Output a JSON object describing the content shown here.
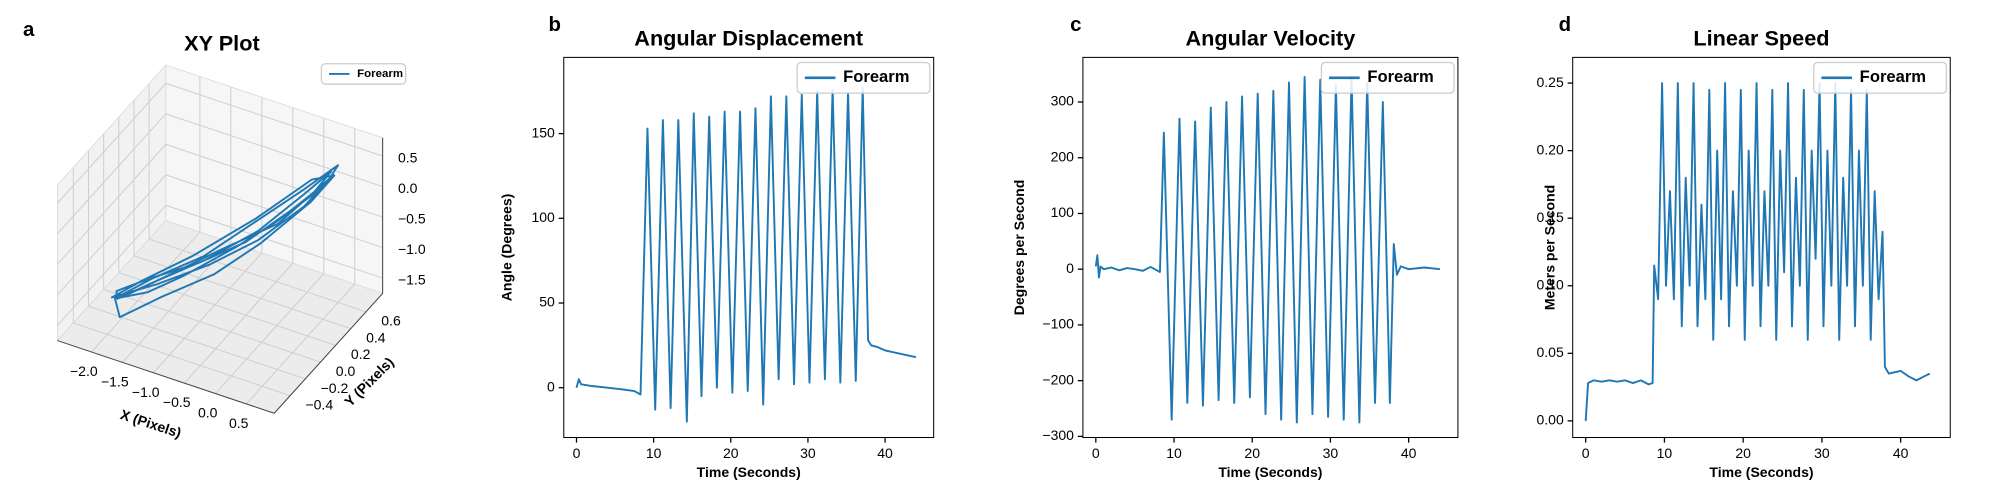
{
  "chart_data": [
    {
      "type": "line3d",
      "panel_label": "a",
      "title": "XY Plot",
      "xlabel": "X (Pixels)",
      "ylabel": "Y (Pixels)",
      "legend": "upper right",
      "series": [
        {
          "name": "Forearm",
          "color": "#1f77b4",
          "x": [
            -2.0,
            -1.6,
            -1.2,
            -0.6,
            -0.1,
            0.3,
            0.45,
            0.2,
            -0.3,
            -0.9,
            -1.5,
            -1.9,
            -2.1,
            -1.7,
            -1.1,
            -0.5,
            0.0,
            0.4,
            0.5,
            0.1,
            -0.5,
            -1.0,
            -1.6,
            -2.0,
            -1.8,
            -1.3,
            -0.7,
            -0.2,
            0.3,
            0.5,
            0.2,
            -0.4,
            -1.1,
            -1.7,
            -2.05,
            -1.5,
            -0.9,
            -0.3,
            0.2,
            0.45,
            -0.1,
            -0.8,
            -1.4,
            -1.9
          ],
          "y": [
            -0.3,
            -0.2,
            -0.05,
            0.15,
            0.3,
            0.45,
            0.55,
            0.4,
            0.2,
            0.0,
            -0.2,
            -0.35,
            -0.2,
            -0.1,
            0.05,
            0.2,
            0.35,
            0.5,
            0.6,
            0.45,
            0.25,
            0.05,
            -0.15,
            -0.3,
            -0.4,
            -0.25,
            -0.05,
            0.15,
            0.4,
            0.55,
            0.5,
            0.25,
            0.0,
            -0.2,
            -0.3,
            -0.15,
            0.05,
            0.2,
            0.4,
            0.58,
            0.3,
            0.1,
            -0.1,
            -0.3
          ],
          "z": [
            -1.3,
            -1.2,
            -1.0,
            -0.6,
            -0.2,
            0.2,
            0.45,
            0.2,
            -0.3,
            -0.7,
            -1.0,
            -1.2,
            -1.35,
            -1.15,
            -0.9,
            -0.55,
            -0.1,
            0.25,
            0.5,
            0.15,
            -0.35,
            -0.75,
            -1.05,
            -1.3,
            -1.4,
            -1.1,
            -0.8,
            -0.4,
            0.1,
            0.4,
            0.3,
            -0.2,
            -0.7,
            -1.05,
            -1.3,
            -1.1,
            -0.85,
            -0.45,
            0.0,
            0.35,
            -0.25,
            -0.65,
            -1.0,
            -1.25
          ]
        }
      ],
      "xlim": [
        -2.55,
        0.95
      ],
      "ylim": [
        -0.61,
        0.82
      ],
      "zlim": [
        -1.75,
        0.8
      ],
      "xticks": [
        {
          "value": -2.0,
          "label": "−2.0"
        },
        {
          "value": -1.5,
          "label": "−1.5"
        },
        {
          "value": -1.0,
          "label": "−1.0"
        },
        {
          "value": -0.5,
          "label": "−0.5"
        },
        {
          "value": 0.0,
          "label": "0.0"
        },
        0.5
      ],
      "yticks": [
        {
          "value": -0.4,
          "label": "−0.4"
        },
        {
          "value": -0.2,
          "label": "−0.2"
        },
        {
          "value": 0.0,
          "label": "0.0"
        },
        0.2,
        0.4,
        0.6
      ],
      "zticks": [
        {
          "value": -1.5,
          "label": "−1.5"
        },
        {
          "value": -1.0,
          "label": "−1.0"
        },
        {
          "value": -0.5,
          "label": "−0.5"
        },
        {
          "value": 0.0,
          "label": "0.0"
        },
        0.5
      ]
    },
    {
      "type": "line",
      "panel_label": "b",
      "title": "Angular Displacement",
      "xlabel": "Time (Seconds)",
      "ylabel": "Angle (Degrees)",
      "legend": "upper right",
      "x": [
        0,
        0.3,
        0.6,
        2,
        4,
        6,
        7.5,
        8.3,
        9.2,
        10.2,
        11.2,
        12.2,
        13.2,
        14.3,
        15.2,
        16.2,
        17.2,
        18.2,
        19.2,
        20.2,
        21.2,
        22.2,
        23.2,
        24.2,
        25.2,
        26.2,
        27.2,
        28.2,
        29.2,
        30.2,
        31.2,
        32.2,
        33.2,
        34.2,
        35.2,
        36.2,
        37.1,
        37.8,
        38.2,
        39,
        40,
        42,
        44
      ],
      "series": [
        {
          "name": "Forearm",
          "color": "#1f77b4",
          "values": [
            0,
            5,
            2,
            1,
            0,
            -1,
            -2,
            -4,
            153,
            -13,
            158,
            -12,
            158,
            -20,
            162,
            -5,
            160,
            0,
            163,
            -3,
            163,
            -2,
            165,
            -10,
            172,
            5,
            172,
            2,
            173,
            3,
            175,
            5,
            176,
            3,
            174,
            4,
            177,
            28,
            25,
            24,
            22,
            20,
            18
          ]
        }
      ],
      "xlim": [
        -1.65,
        46.3
      ],
      "ylim": [
        -29.4,
        195
      ],
      "xticks": [
        0,
        10,
        20,
        30,
        40
      ],
      "yticks": [
        0,
        50,
        100,
        150
      ]
    },
    {
      "type": "line",
      "panel_label": "c",
      "title": "Angular Velocity",
      "xlabel": "Time (Seconds)",
      "ylabel": "Degrees per Second",
      "legend": "upper right",
      "x": [
        0,
        0.2,
        0.4,
        0.6,
        1,
        2,
        3,
        4,
        5,
        6,
        7,
        7.8,
        8.2,
        8.7,
        9.7,
        10.7,
        11.7,
        12.7,
        13.7,
        14.7,
        15.7,
        16.7,
        17.7,
        18.7,
        19.7,
        20.7,
        21.7,
        22.7,
        23.7,
        24.7,
        25.7,
        26.7,
        27.7,
        28.7,
        29.7,
        30.7,
        31.7,
        32.7,
        33.7,
        34.7,
        35.7,
        36.7,
        37.6,
        38.1,
        38.5,
        39,
        40,
        42,
        44
      ],
      "series": [
        {
          "name": "Forearm",
          "color": "#1f77b4",
          "values": [
            5,
            25,
            -15,
            5,
            0,
            3,
            -2,
            2,
            0,
            -3,
            4,
            -2,
            -5,
            245,
            -270,
            270,
            -240,
            265,
            -245,
            290,
            -235,
            300,
            -240,
            310,
            -230,
            315,
            -260,
            320,
            -270,
            335,
            -275,
            345,
            -260,
            340,
            -265,
            330,
            -270,
            345,
            -275,
            335,
            -240,
            300,
            -240,
            45,
            -10,
            5,
            0,
            3,
            0
          ]
        }
      ],
      "xlim": [
        -1.65,
        46.3
      ],
      "ylim": [
        -302,
        380
      ],
      "xticks": [
        0,
        10,
        20,
        30,
        40
      ],
      "yticks": [
        {
          "value": -300,
          "label": "−300"
        },
        {
          "value": -200,
          "label": "−200"
        },
        {
          "value": -100,
          "label": "−100"
        },
        0,
        100,
        200,
        300
      ]
    },
    {
      "type": "line",
      "panel_label": "d",
      "title": "Linear Speed",
      "xlabel": "Time (Seconds)",
      "ylabel": "Meters per Second",
      "legend": "upper right",
      "x": [
        0,
        0.3,
        1,
        2,
        3,
        4,
        5,
        6,
        7,
        8,
        8.5,
        8.7,
        9.2,
        9.7,
        10.2,
        10.7,
        11.2,
        11.7,
        12.2,
        12.7,
        13.2,
        13.7,
        14.2,
        14.7,
        15.2,
        15.7,
        16.2,
        16.7,
        17.2,
        17.7,
        18.2,
        18.7,
        19.2,
        19.7,
        20.2,
        20.7,
        21.2,
        21.7,
        22.2,
        22.7,
        23.2,
        23.7,
        24.2,
        24.7,
        25.2,
        25.7,
        26.2,
        26.7,
        27.2,
        27.7,
        28.2,
        28.7,
        29.2,
        29.7,
        30.2,
        30.7,
        31.2,
        31.7,
        32.2,
        32.7,
        33.2,
        33.7,
        34.2,
        34.7,
        35.2,
        35.7,
        36.2,
        36.7,
        37.2,
        37.7,
        38.0,
        38.5,
        40,
        41,
        42,
        43,
        43.7
      ],
      "series": [
        {
          "name": "Forearm",
          "color": "#1f77b4",
          "values": [
            0,
            0.028,
            0.03,
            0.029,
            0.03,
            0.029,
            0.03,
            0.028,
            0.03,
            0.027,
            0.028,
            0.115,
            0.09,
            0.25,
            0.1,
            0.17,
            0.09,
            0.25,
            0.07,
            0.18,
            0.1,
            0.25,
            0.07,
            0.16,
            0.09,
            0.245,
            0.06,
            0.2,
            0.09,
            0.25,
            0.07,
            0.17,
            0.1,
            0.245,
            0.06,
            0.2,
            0.1,
            0.25,
            0.07,
            0.17,
            0.1,
            0.245,
            0.06,
            0.2,
            0.11,
            0.25,
            0.07,
            0.18,
            0.1,
            0.245,
            0.06,
            0.2,
            0.12,
            0.25,
            0.07,
            0.2,
            0.1,
            0.25,
            0.06,
            0.18,
            0.1,
            0.245,
            0.07,
            0.2,
            0.1,
            0.245,
            0.06,
            0.17,
            0.09,
            0.14,
            0.04,
            0.035,
            0.037,
            0.033,
            0.03,
            0.033,
            0.035
          ]
        }
      ],
      "xlim": [
        -1.65,
        46.3
      ],
      "ylim": [
        -0.0123,
        0.269
      ],
      "xticks": [
        0,
        10,
        20,
        30,
        40
      ],
      "yticks": [
        {
          "value": 0,
          "label": "0.00"
        },
        {
          "value": 0.05,
          "label": "0.05"
        },
        {
          "value": 0.1,
          "label": "0.10"
        },
        {
          "value": 0.15,
          "label": "0.15"
        },
        {
          "value": 0.2,
          "label": "0.20"
        },
        {
          "value": 0.25,
          "label": "0.25"
        }
      ]
    }
  ]
}
